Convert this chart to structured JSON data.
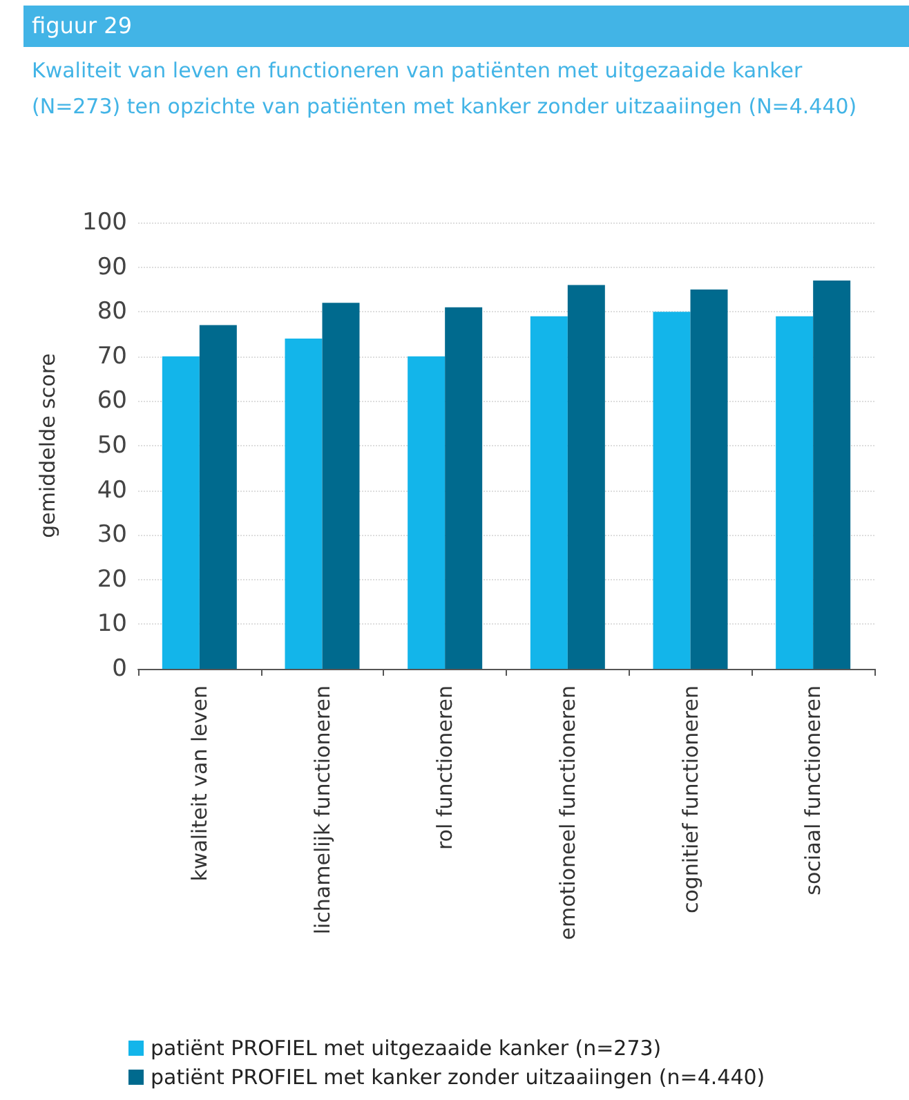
{
  "chart_data": {
    "type": "bar",
    "title": "figuur 29",
    "subtitle": "Kwaliteit van leven en functioneren van patiënten met uitgezaaide kanker (N=273) ten opzichte van patiënten met kanker zonder uitzaaiingen (N=4.440)",
    "ylabel": "gemiddelde score",
    "categories": [
      "kwaliteit van leven",
      "lichamelijk functioneren",
      "rol functioneren",
      "emotioneel functioneren",
      "cognitief functioneren",
      "sociaal functioneren"
    ],
    "series": [
      {
        "name": "patiënt PROFIEL met uitgezaaide kanker (n=273)",
        "color": "#13b5ea",
        "values": [
          70,
          74,
          70,
          79,
          80,
          79
        ]
      },
      {
        "name": "patiënt PROFIEL met kanker zonder uitzaaiingen (n=4.440)",
        "color": "#006a8e",
        "values": [
          77,
          82,
          81,
          86,
          85,
          87
        ]
      }
    ],
    "ylim": [
      0,
      100
    ],
    "yticks": [
      0,
      10,
      20,
      30,
      40,
      50,
      60,
      70,
      80,
      90,
      100
    ],
    "grid": "y",
    "legend": "bottom"
  }
}
